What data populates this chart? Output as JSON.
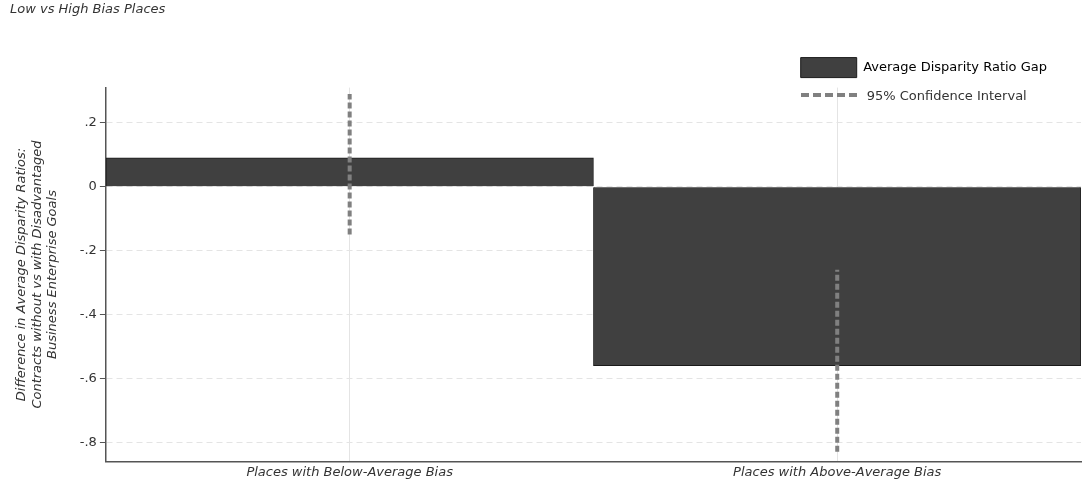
{
  "chart_data": {
    "type": "bar",
    "title": "Low vs High Bias Places",
    "ylabel": "Difference in Average Disparity Ratios:\nContracts without vs with Disadvantaged\nBusiness Enterprise Goals",
    "categories": [
      "Places with Below-Average Bias",
      "Places with Above-Average Bias"
    ],
    "series": [
      {
        "name": "Average Disparity Ratio Gap",
        "color": "#404040",
        "values": [
          0.09,
          -0.56
        ],
        "errors": [
          [
            -0.15,
            0.29
          ],
          [
            -0.83,
            -0.26
          ]
        ]
      }
    ],
    "annotations": [
      "95% Confidence Interval"
    ],
    "ylim": [
      -0.86,
      0.31
    ],
    "yticks": [
      {
        "value": 0.2,
        "label": ".2"
      },
      0,
      {
        "value": -0.2,
        "label": "-.2"
      },
      {
        "value": -0.4,
        "label": "-.4"
      },
      {
        "value": -0.6,
        "label": "-.6"
      },
      {
        "value": -0.8,
        "label": "-.8"
      }
    ],
    "grid": true,
    "legend": "top right"
  }
}
